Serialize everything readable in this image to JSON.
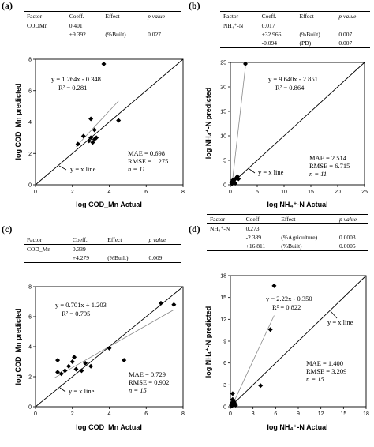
{
  "panels": [
    {
      "label": "(a)",
      "table": {
        "headers": [
          "Factor",
          "Coeff.",
          "Effect",
          "p value"
        ],
        "rows": [
          [
            "CODMn",
            "0.401",
            "",
            ""
          ],
          [
            "",
            "+9.392",
            "(%Built)",
            "0.027"
          ]
        ]
      },
      "stats": [
        "MAE = 0.698",
        "RMSE = 1.275",
        "n = 11"
      ],
      "eq": [
        "y = 1.264x - 0.348",
        "R² = 0.281"
      ],
      "yx_label": "y = x line",
      "xlabel": "log COD_Mn Actual",
      "ylabel": "log COD_Mn predicted"
    },
    {
      "label": "(b)",
      "table": {
        "headers": [
          "Factor",
          "Coeff.",
          "Effect",
          "p value"
        ],
        "rows": [
          [
            "NH₄⁺-N",
            "0.017",
            "",
            ""
          ],
          [
            "",
            "+32.966",
            "(%Built)",
            "0.007"
          ],
          [
            "",
            "-0.094",
            "(PD)",
            "0.007"
          ]
        ]
      },
      "stats": [
        "MAE = 2.514",
        "RMSE = 6.715",
        "n = 11"
      ],
      "eq": [
        "y = 9.640x - 2.851",
        "R² = 0.864"
      ],
      "yx_label": "y = x line",
      "xlabel": "log  NH₄⁺-N Actual",
      "ylabel": "log NH₄⁺-N predicted"
    },
    {
      "label": "(c)",
      "table": {
        "headers": [
          "Factor",
          "Coeff.",
          "Effect",
          "p value"
        ],
        "rows": [
          [
            "COD_Mn",
            "0.339",
            "",
            ""
          ],
          [
            "",
            "+4.279",
            "(%Built)",
            "0.009"
          ]
        ]
      },
      "stats": [
        "MAE = 0.729",
        "RMSE = 0.902",
        "n = 15"
      ],
      "eq": [
        "y = 0.701x + 1.203",
        "R² = 0.795"
      ],
      "yx_label": "y = x line",
      "xlabel": "log COD_Mn Actual",
      "ylabel": "log COD_Mn predicted"
    },
    {
      "label": "(d)",
      "table": {
        "headers": [
          "Factor",
          "Coeff.",
          "Effect",
          "p value"
        ],
        "rows": [
          [
            "NH₄⁺-N",
            "0.273",
            "",
            ""
          ],
          [
            "",
            "-2.389",
            "(%Agriculture)",
            "0.0003"
          ],
          [
            "",
            "+16.811",
            "(%Built)",
            "0.0005"
          ]
        ]
      },
      "stats": [
        "MAE = 1.400",
        "RMSE = 3.209",
        "n = 15"
      ],
      "eq": [
        "y = 2.22x - 0.350",
        "R² = 0.822"
      ],
      "yx_label": "y = x line",
      "xlabel": "log  NH₄⁺-N Actual",
      "ylabel": "log NH₄⁺-N predicted"
    }
  ],
  "chart_data": [
    {
      "type": "scatter",
      "xlim": [
        0,
        8
      ],
      "ylim": [
        0,
        8
      ],
      "xticks": [
        0,
        2,
        4,
        6,
        8
      ],
      "yticks": [
        0,
        2,
        4,
        6,
        8
      ],
      "x": [
        2.3,
        2.6,
        2.9,
        3.0,
        3.1,
        3.2,
        3.3,
        3.0,
        3.2,
        4.5,
        3.7
      ],
      "y": [
        2.6,
        3.1,
        2.8,
        3.0,
        2.7,
        3.5,
        3.0,
        4.2,
        2.9,
        4.1,
        7.7
      ],
      "trend": {
        "slope": 1.264,
        "intercept": -0.348,
        "x_range": [
          2.2,
          4.5
        ]
      },
      "identity": true
    },
    {
      "type": "scatter",
      "xlim": [
        0,
        25
      ],
      "ylim": [
        0,
        25
      ],
      "xticks": [
        0,
        5,
        10,
        15,
        20,
        25
      ],
      "yticks": [
        0,
        5,
        10,
        15,
        20,
        25
      ],
      "x": [
        0.3,
        0.5,
        0.8,
        0.4,
        1.0,
        1.3,
        0.6,
        0.9,
        0.2,
        1.5,
        2.8
      ],
      "y": [
        0.2,
        1.0,
        0.4,
        0.6,
        1.3,
        1.7,
        0.8,
        0.3,
        0.5,
        1.2,
        24.7
      ],
      "trend": {
        "slope": 9.64,
        "intercept": -2.851,
        "x_range": [
          0.3,
          2.8
        ]
      },
      "identity": true
    },
    {
      "type": "scatter",
      "xlim": [
        0,
        8
      ],
      "ylim": [
        0,
        8
      ],
      "xticks": [
        0,
        2,
        4,
        6,
        8
      ],
      "yticks": [
        0,
        2,
        4,
        6,
        8
      ],
      "x": [
        1.2,
        1.4,
        1.2,
        1.6,
        1.8,
        2.0,
        2.1,
        2.2,
        2.5,
        2.7,
        3.0,
        4.0,
        4.8,
        6.8,
        7.5
      ],
      "y": [
        3.1,
        2.2,
        2.3,
        2.4,
        2.7,
        3.0,
        3.3,
        2.5,
        2.4,
        2.9,
        2.7,
        3.9,
        3.1,
        6.9,
        6.8
      ],
      "trend": {
        "slope": 0.701,
        "intercept": 1.203,
        "x_range": [
          1.0,
          7.5
        ]
      },
      "identity": true
    },
    {
      "type": "scatter",
      "xlim": [
        0,
        18
      ],
      "ylim": [
        0,
        18
      ],
      "xticks": [
        0,
        3,
        6,
        9,
        12,
        15,
        18
      ],
      "yticks": [
        0,
        3,
        6,
        9,
        12,
        15,
        18
      ],
      "x": [
        0.1,
        0.2,
        0.3,
        0.4,
        0.5,
        0.3,
        0.6,
        0.2,
        0.4,
        0.7,
        0.5,
        0.3,
        4.0,
        5.3,
        5.8
      ],
      "y": [
        0.2,
        0.5,
        1.0,
        0.3,
        0.6,
        1.8,
        0.4,
        0.1,
        0.8,
        0.2,
        0.3,
        0.5,
        2.9,
        10.6,
        16.6
      ],
      "trend": {
        "slope": 2.22,
        "intercept": -0.35,
        "x_range": [
          0.2,
          5.8
        ]
      },
      "identity": true
    }
  ]
}
